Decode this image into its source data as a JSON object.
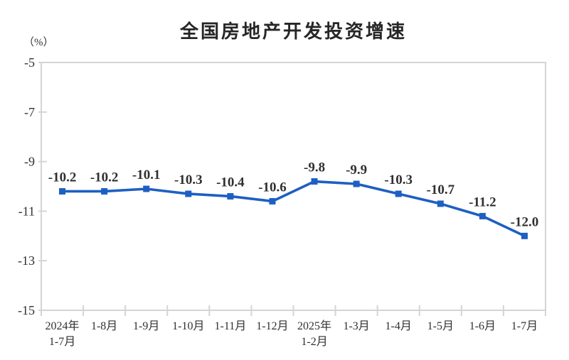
{
  "chart_data": {
    "type": "line",
    "title": "全国房地产开发投资增速",
    "unit_label": "（%）",
    "categories": [
      "2024年\n1-7月",
      "1-8月",
      "1-9月",
      "1-10月",
      "1-11月",
      "1-12月",
      "2025年\n1-2月",
      "1-3月",
      "1-4月",
      "1-5月",
      "1-6月",
      "1-7月"
    ],
    "values": [
      -10.2,
      -10.2,
      -10.1,
      -10.3,
      -10.4,
      -10.6,
      -9.8,
      -9.9,
      -10.3,
      -10.7,
      -11.2,
      -12.0
    ],
    "data_labels": [
      "-10.2",
      "-10.2",
      "-10.1",
      "-10.3",
      "-10.4",
      "-10.6",
      "-9.8",
      "-9.9",
      "-10.3",
      "-10.7",
      "-11.2",
      "-12.0"
    ],
    "ylim": [
      -15,
      -5
    ],
    "y_ticks": [
      -5,
      -7,
      -9,
      -11,
      -13,
      -15
    ],
    "grid": false,
    "legend": "none",
    "xlabel": "",
    "ylabel": "（%）",
    "series_color": "#1D5FC3",
    "axis_color": "#D4D4D4",
    "text_color": "#303030",
    "title_color": "#262626",
    "background_color": "#FFFFFF"
  }
}
